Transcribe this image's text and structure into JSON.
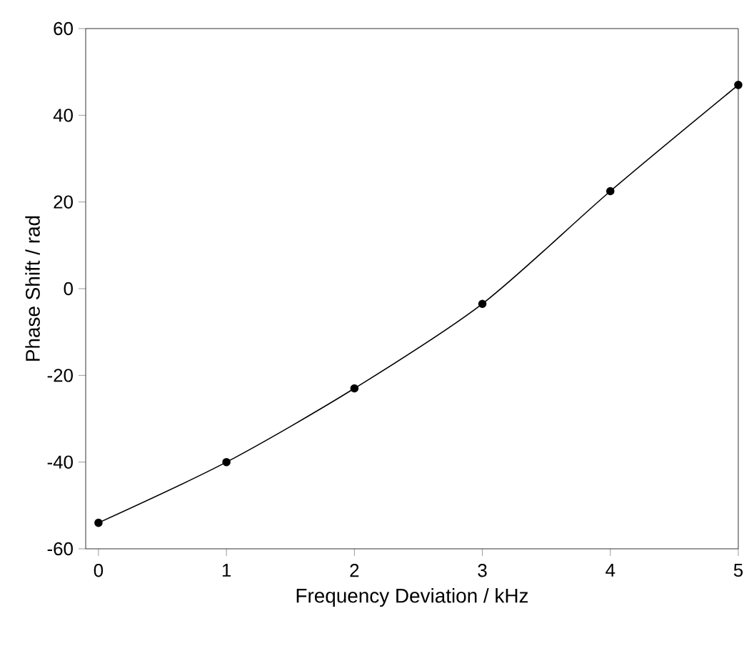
{
  "chart_data": {
    "type": "line",
    "xlabel": "Frequency Deviation / kHz",
    "ylabel": "Phase Shift / rad",
    "x": [
      0,
      1,
      2,
      3,
      4,
      5
    ],
    "series": [
      {
        "color": "#000000",
        "values": [
          -54,
          -40,
          -23,
          -3.5,
          22.5,
          47
        ]
      }
    ],
    "xlim": [
      -0.1,
      5
    ],
    "ylim": [
      -60,
      60
    ],
    "xticks": [
      0,
      1,
      2,
      3,
      4,
      5
    ],
    "yticks": [
      -60,
      -40,
      -20,
      0,
      20,
      40,
      60
    ],
    "marker": "circle",
    "line_style": "solid"
  }
}
